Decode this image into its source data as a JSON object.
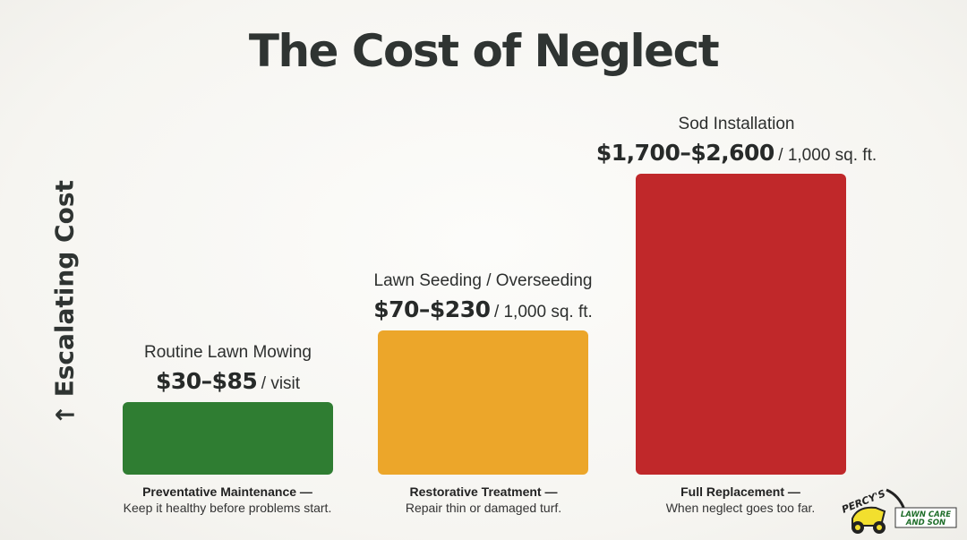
{
  "title": "The Cost of Neglect",
  "y_axis_label": "Escalating Cost",
  "y_axis_arrow": "arrow-up-icon",
  "colors": {
    "green": "#2f7d32",
    "orange": "#eca62a",
    "red": "#c0282a"
  },
  "chart_data": {
    "type": "bar",
    "title": "The Cost of Neglect",
    "ylabel": "Escalating Cost",
    "categories": [
      "Preventative Maintenance",
      "Restorative Treatment",
      "Full Replacement"
    ],
    "bars": [
      {
        "label": "Routine Lawn Mowing",
        "price": "$30–$85",
        "unit": "/ visit",
        "category_title": "Preventative Maintenance —",
        "category_desc": "Keep it healthy before problems start.",
        "color": "#2f7d32",
        "level": 0.24
      },
      {
        "label": "Lawn Seeding / Overseeding",
        "price": "$70–$230",
        "unit": "/ 1,000 sq. ft.",
        "category_title": "Restorative Treatment —",
        "category_desc": "Repair thin or damaged turf.",
        "color": "#eca62a",
        "level": 0.48
      },
      {
        "label": "Sod Installation",
        "price": "$1,700–$2,600",
        "unit": "/ 1,000 sq. ft.",
        "category_title": "Full Replacement —",
        "category_desc": "When neglect goes too far.",
        "color": "#c0282a",
        "level": 1.0
      }
    ]
  },
  "logo": {
    "name": "PERCY'S",
    "line1": "LAWN CARE",
    "line2": "AND SON",
    "icon": "lawn-mower-icon"
  }
}
